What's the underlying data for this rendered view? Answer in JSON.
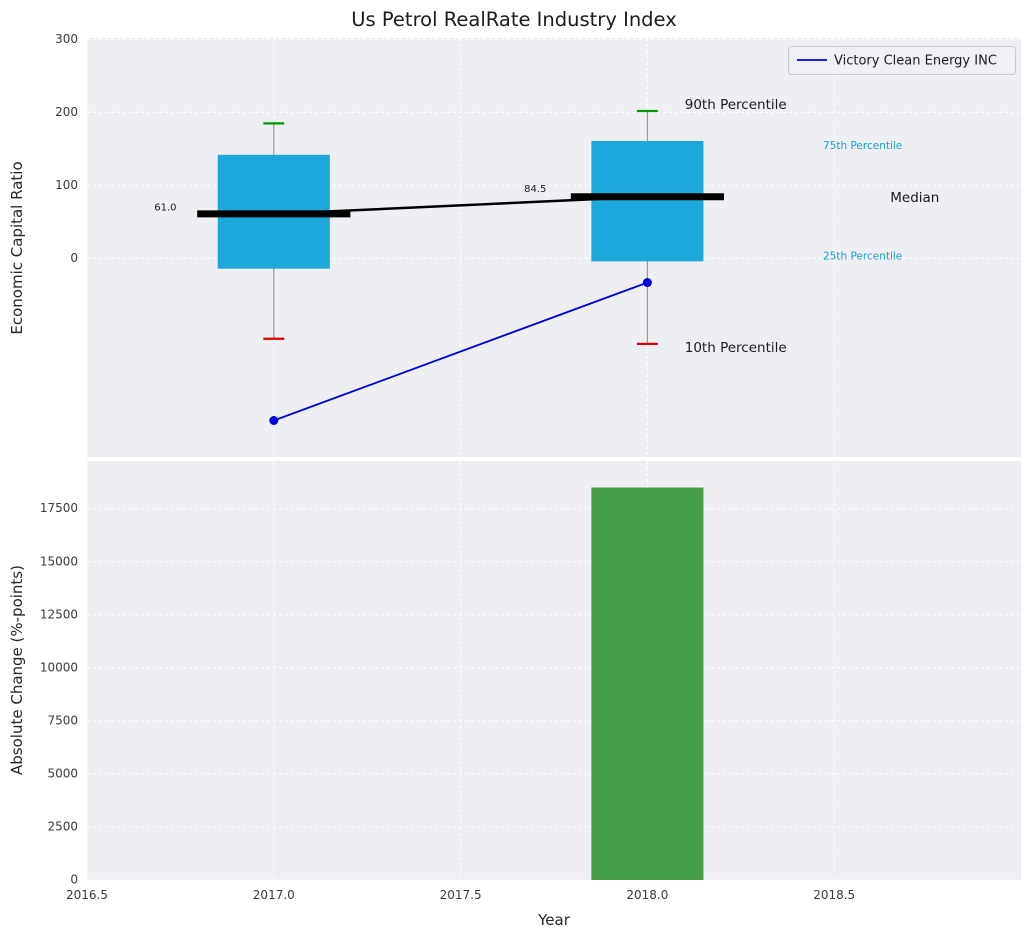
{
  "title": "Us Petrol RealRate Industry Index",
  "legend": {
    "label": "Victory Clean Energy INC"
  },
  "axes": {
    "x_label": "Year",
    "top_ylabel": "Economic Capital Ratio",
    "bottom_ylabel": "Absolute Change (%-points)",
    "x_ticks": [
      {
        "value": 2016.5,
        "label": "2016.5"
      },
      {
        "value": 2017.0,
        "label": "2017.0"
      },
      {
        "value": 2017.5,
        "label": "2017.5"
      },
      {
        "value": 2018.0,
        "label": "2018.0"
      },
      {
        "value": 2018.5,
        "label": "2018.5"
      }
    ]
  },
  "colors": {
    "plot_bg": "#edeff3",
    "grid": "#ffffff",
    "box_fill": "#1da8dc",
    "whisker": "#999999",
    "cap_top": "#009a00",
    "cap_bottom": "#dd0000",
    "median_line": "#000000",
    "series_line": "#0000dd",
    "bar_fill": "#43a047",
    "tick_label": "#3b3b3b",
    "text": "#1a1a1a",
    "annotation_teal": "#1a9fc4"
  },
  "chart_data": [
    {
      "type": "boxplot",
      "title": "Us Petrol RealRate Industry Index",
      "xlabel": "Year",
      "ylabel": "Economic Capital Ratio",
      "xlim": [
        2016.5,
        2019.0
      ],
      "ylim": [
        -272,
        302
      ],
      "yticks": [
        0,
        100,
        200,
        300
      ],
      "grid": true,
      "legend_position": "upper right",
      "boxes": [
        {
          "x": 2017,
          "p10": -110,
          "p25": -14,
          "median": 61.0,
          "p75": 142,
          "p90": 185,
          "label": "61.0"
        },
        {
          "x": 2018,
          "p10": -117,
          "p25": -4,
          "median": 84.5,
          "p75": 161,
          "p90": 202,
          "label": "84.5"
        }
      ],
      "series": [
        {
          "name": "Victory Clean Energy INC",
          "x": [
            2017,
            2018
          ],
          "y": [
            -222,
            -33
          ]
        }
      ],
      "annotations": [
        {
          "text": "61.0",
          "x": 2016.68,
          "y": 70,
          "size": 10,
          "color": "black"
        },
        {
          "text": "84.5",
          "x": 2017.67,
          "y": 95,
          "size": 10,
          "color": "black"
        },
        {
          "text": "90th Percentile",
          "x": 2018.1,
          "y": 210,
          "size": 13.5,
          "color": "black"
        },
        {
          "text": "75th Percentile",
          "x": 2018.47,
          "y": 154,
          "size": 10.5,
          "color": "teal"
        },
        {
          "text": "Median",
          "x": 2018.65,
          "y": 83,
          "size": 13.5,
          "color": "black"
        },
        {
          "text": "25th Percentile",
          "x": 2018.47,
          "y": 3,
          "size": 10.5,
          "color": "teal"
        },
        {
          "text": "10th Percentile",
          "x": 2018.1,
          "y": -123,
          "size": 13.5,
          "color": "black"
        }
      ]
    },
    {
      "type": "bar",
      "xlabel": "Year",
      "ylabel": "Absolute Change (%-points)",
      "categories": [
        2018
      ],
      "values": [
        18500
      ],
      "yticks": [
        0,
        2500,
        5000,
        7500,
        10000,
        12500,
        15000,
        17500
      ],
      "ylim": [
        0,
        19750
      ],
      "xlim": [
        2016.5,
        2019.0
      ],
      "bar_width": 0.3
    }
  ]
}
